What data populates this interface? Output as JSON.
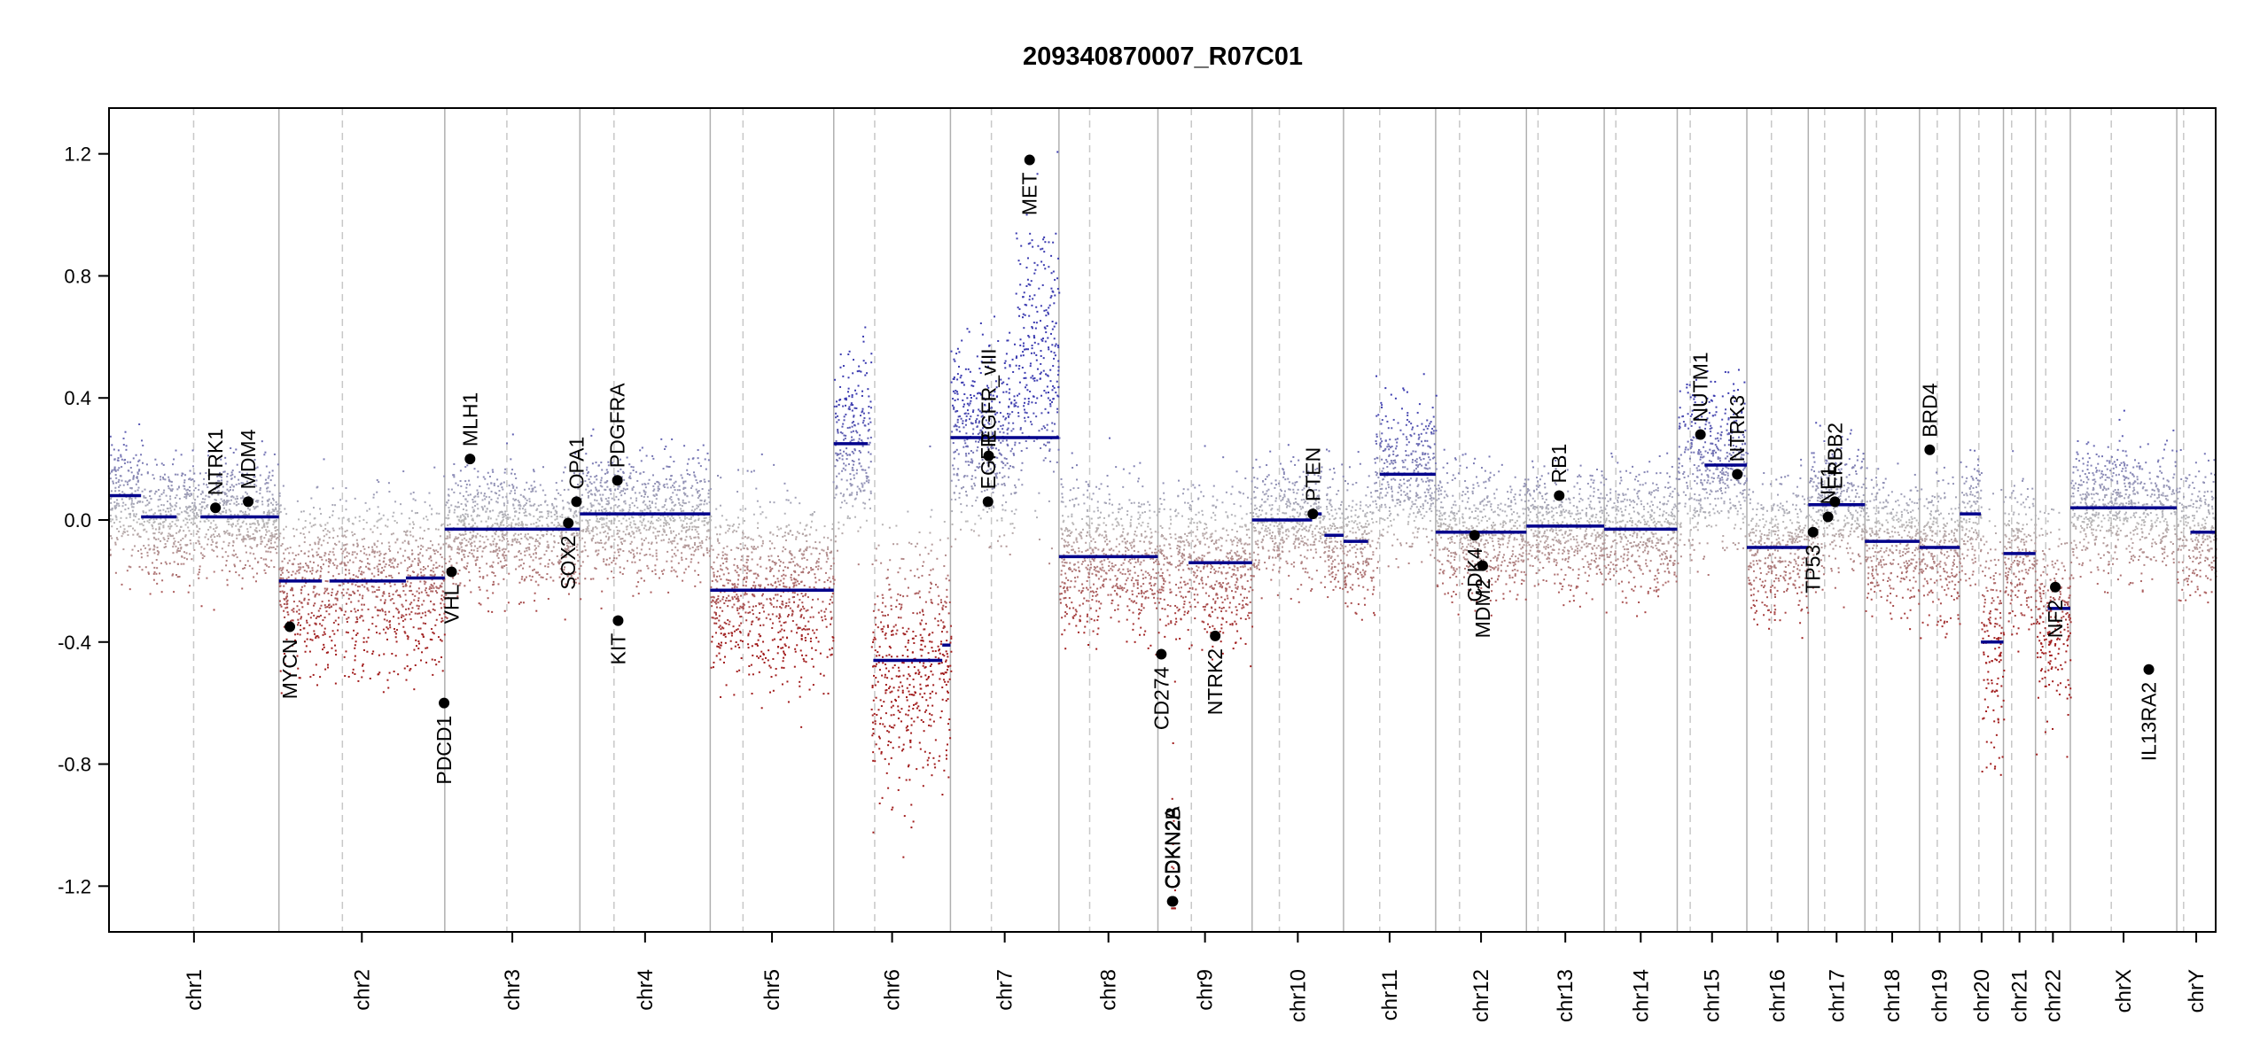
{
  "chart_data": {
    "type": "scatter",
    "title": "209340870007_R07C01",
    "xlabel": "",
    "ylabel": "",
    "ylim": [
      -1.35,
      1.35
    ],
    "yticks": [
      -1.2,
      -0.8,
      -0.4,
      0.0,
      0.4,
      0.8,
      1.2
    ],
    "ytick_labels": [
      "-1.2",
      "-0.8",
      "-0.4",
      "0.0",
      "0.4",
      "0.8",
      "1.2"
    ],
    "colors": {
      "gain": "#3b3bb0",
      "loss": "#a11c1c",
      "neutral": "#b8b8b8",
      "segment": "#00008b",
      "gene": "#000000",
      "boundary": "#b0b0b0"
    },
    "chromosomes": [
      {
        "name": "chr1",
        "length": 249,
        "centromere": 124
      },
      {
        "name": "chr2",
        "length": 243,
        "centromere": 93
      },
      {
        "name": "chr3",
        "length": 198,
        "centromere": 91
      },
      {
        "name": "chr4",
        "length": 191,
        "centromere": 50
      },
      {
        "name": "chr5",
        "length": 181,
        "centromere": 48
      },
      {
        "name": "chr6",
        "length": 171,
        "centromere": 60
      },
      {
        "name": "chr7",
        "length": 159,
        "centromere": 60
      },
      {
        "name": "chr8",
        "length": 145,
        "centromere": 45
      },
      {
        "name": "chr9",
        "length": 138,
        "centromere": 49
      },
      {
        "name": "chr10",
        "length": 134,
        "centromere": 40
      },
      {
        "name": "chr11",
        "length": 135,
        "centromere": 53
      },
      {
        "name": "chr12",
        "length": 133,
        "centromere": 35
      },
      {
        "name": "chr13",
        "length": 114,
        "centromere": 17
      },
      {
        "name": "chr14",
        "length": 107,
        "centromere": 17
      },
      {
        "name": "chr15",
        "length": 102,
        "centromere": 19
      },
      {
        "name": "chr16",
        "length": 90,
        "centromere": 36
      },
      {
        "name": "chr17",
        "length": 83,
        "centromere": 24
      },
      {
        "name": "chr18",
        "length": 80,
        "centromere": 17
      },
      {
        "name": "chr19",
        "length": 59,
        "centromere": 26
      },
      {
        "name": "chr20",
        "length": 64,
        "centromere": 28
      },
      {
        "name": "chr21",
        "length": 47,
        "centromere": 12
      },
      {
        "name": "chr22",
        "length": 51,
        "centromere": 15
      },
      {
        "name": "chrX",
        "length": 156,
        "centromere": 60
      },
      {
        "name": "chrY",
        "length": 57,
        "centromere": 10
      }
    ],
    "segments": [
      {
        "chr": "chr1",
        "start": 0,
        "end": 47,
        "value": 0.08
      },
      {
        "chr": "chr1",
        "start": 47,
        "end": 99,
        "value": 0.01
      },
      {
        "chr": "chr1",
        "start": 134,
        "end": 249,
        "value": 0.01
      },
      {
        "chr": "chr2",
        "start": 0,
        "end": 63,
        "value": -0.2
      },
      {
        "chr": "chr2",
        "start": 74,
        "end": 186,
        "value": -0.2
      },
      {
        "chr": "chr2",
        "start": 186,
        "end": 243,
        "value": -0.19
      },
      {
        "chr": "chr3",
        "start": 0,
        "end": 198,
        "value": -0.03
      },
      {
        "chr": "chr4",
        "start": 0,
        "end": 191,
        "value": 0.02
      },
      {
        "chr": "chr5",
        "start": 0,
        "end": 181,
        "value": -0.23
      },
      {
        "chr": "chr6",
        "start": 0,
        "end": 50,
        "value": 0.25
      },
      {
        "chr": "chr6",
        "start": 58,
        "end": 159,
        "value": -0.46
      },
      {
        "chr": "chr6",
        "start": 159,
        "end": 171,
        "value": -0.41
      },
      {
        "chr": "chr7",
        "start": 0,
        "end": 159,
        "value": 0.27
      },
      {
        "chr": "chr8",
        "start": 0,
        "end": 145,
        "value": -0.12
      },
      {
        "chr": "chr9",
        "start": 45,
        "end": 138,
        "value": -0.14
      },
      {
        "chr": "chr10",
        "start": 0,
        "end": 88,
        "value": 0.0
      },
      {
        "chr": "chr10",
        "start": 88,
        "end": 102,
        "value": 0.02
      },
      {
        "chr": "chr10",
        "start": 106,
        "end": 134,
        "value": -0.05
      },
      {
        "chr": "chr11",
        "start": 0,
        "end": 36,
        "value": -0.07
      },
      {
        "chr": "chr11",
        "start": 53,
        "end": 135,
        "value": 0.15
      },
      {
        "chr": "chr12",
        "start": 0,
        "end": 133,
        "value": -0.04
      },
      {
        "chr": "chr13",
        "start": 0,
        "end": 114,
        "value": -0.02
      },
      {
        "chr": "chr14",
        "start": 0,
        "end": 107,
        "value": -0.03
      },
      {
        "chr": "chr15",
        "start": 40,
        "end": 102,
        "value": 0.18
      },
      {
        "chr": "chr16",
        "start": 0,
        "end": 90,
        "value": -0.09
      },
      {
        "chr": "chr17",
        "start": 0,
        "end": 83,
        "value": 0.05
      },
      {
        "chr": "chr18",
        "start": 0,
        "end": 80,
        "value": -0.07
      },
      {
        "chr": "chr19",
        "start": 0,
        "end": 59,
        "value": -0.09
      },
      {
        "chr": "chr20",
        "start": 0,
        "end": 31,
        "value": 0.02
      },
      {
        "chr": "chr20",
        "start": 31,
        "end": 64,
        "value": -0.4
      },
      {
        "chr": "chr21",
        "start": 0,
        "end": 47,
        "value": -0.11
      },
      {
        "chr": "chr22",
        "start": 18,
        "end": 51,
        "value": -0.29
      },
      {
        "chr": "chrX",
        "start": 0,
        "end": 156,
        "value": 0.04
      },
      {
        "chr": "chrY",
        "start": 20,
        "end": 57,
        "value": -0.04
      }
    ],
    "genes": [
      {
        "name": "NTRK1",
        "chr": "chr1",
        "pos": 156,
        "value": 0.04,
        "side": "above"
      },
      {
        "name": "MDM4",
        "chr": "chr1",
        "pos": 204,
        "value": 0.06,
        "side": "above"
      },
      {
        "name": "MYCN",
        "chr": "chr2",
        "pos": 16,
        "value": -0.35,
        "side": "below"
      },
      {
        "name": "PDCD1",
        "chr": "chr2",
        "pos": 242,
        "value": -0.6,
        "side": "below"
      },
      {
        "name": "VHL",
        "chr": "chr3",
        "pos": 10,
        "value": -0.17,
        "side": "below"
      },
      {
        "name": "MLH1",
        "chr": "chr3",
        "pos": 37,
        "value": 0.2,
        "side": "above"
      },
      {
        "name": "SOX2",
        "chr": "chr3",
        "pos": 181,
        "value": -0.01,
        "side": "below"
      },
      {
        "name": "OPA1",
        "chr": "chr3",
        "pos": 193,
        "value": 0.06,
        "side": "above"
      },
      {
        "name": "PDGFRA",
        "chr": "chr4",
        "pos": 55,
        "value": 0.13,
        "side": "above"
      },
      {
        "name": "KIT",
        "chr": "chr4",
        "pos": 56,
        "value": -0.33,
        "side": "below"
      },
      {
        "name": "EGFR",
        "chr": "chr7",
        "pos": 55,
        "value": 0.06,
        "side": "above"
      },
      {
        "name": "EGFR_vIII",
        "chr": "chr7",
        "pos": 56,
        "value": 0.21,
        "side": "above"
      },
      {
        "name": "MET",
        "chr": "chr7",
        "pos": 116,
        "value": 1.18,
        "side": "below"
      },
      {
        "name": "CDKN2A",
        "chr": "chr9",
        "pos": 21,
        "value": -1.25,
        "side": "above"
      },
      {
        "name": "CDKN2B",
        "chr": "chr9",
        "pos": 22,
        "value": -1.25,
        "side": "above"
      },
      {
        "name": "CD274",
        "chr": "chr9",
        "pos": 5,
        "value": -0.44,
        "side": "below"
      },
      {
        "name": "NTRK2",
        "chr": "chr9",
        "pos": 84,
        "value": -0.38,
        "side": "below"
      },
      {
        "name": "PTEN",
        "chr": "chr10",
        "pos": 89,
        "value": 0.02,
        "side": "above"
      },
      {
        "name": "CDK4",
        "chr": "chr12",
        "pos": 57,
        "value": -0.05,
        "side": "below"
      },
      {
        "name": "MDM2",
        "chr": "chr12",
        "pos": 69,
        "value": -0.15,
        "side": "below"
      },
      {
        "name": "RB1",
        "chr": "chr13",
        "pos": 48,
        "value": 0.08,
        "side": "above"
      },
      {
        "name": "NUTM1",
        "chr": "chr15",
        "pos": 34,
        "value": 0.28,
        "side": "above"
      },
      {
        "name": "NTRK3",
        "chr": "chr15",
        "pos": 88,
        "value": 0.15,
        "side": "above"
      },
      {
        "name": "TP53",
        "chr": "chr17",
        "pos": 7,
        "value": -0.04,
        "side": "below"
      },
      {
        "name": "NF1",
        "chr": "chr17",
        "pos": 29,
        "value": 0.01,
        "side": "above"
      },
      {
        "name": "ERBB2",
        "chr": "chr17",
        "pos": 39,
        "value": 0.06,
        "side": "above"
      },
      {
        "name": "BRD4",
        "chr": "chr19",
        "pos": 15,
        "value": 0.23,
        "side": "above"
      },
      {
        "name": "NF2",
        "chr": "chr22",
        "pos": 29,
        "value": -0.22,
        "side": "below"
      },
      {
        "name": "IL13RA2",
        "chr": "chrX",
        "pos": 115,
        "value": -0.49,
        "side": "below"
      }
    ],
    "bins": {
      "points_per_mb": 4.5,
      "overrides": [
        {
          "chr": "chr7",
          "start": 95,
          "end": 159,
          "value": 0.55
        },
        {
          "chr": "chr7",
          "start": 108,
          "end": 125,
          "value": 0.75
        },
        {
          "chr": "chr9",
          "start": 19,
          "end": 24,
          "value": -1.2
        }
      ]
    }
  }
}
